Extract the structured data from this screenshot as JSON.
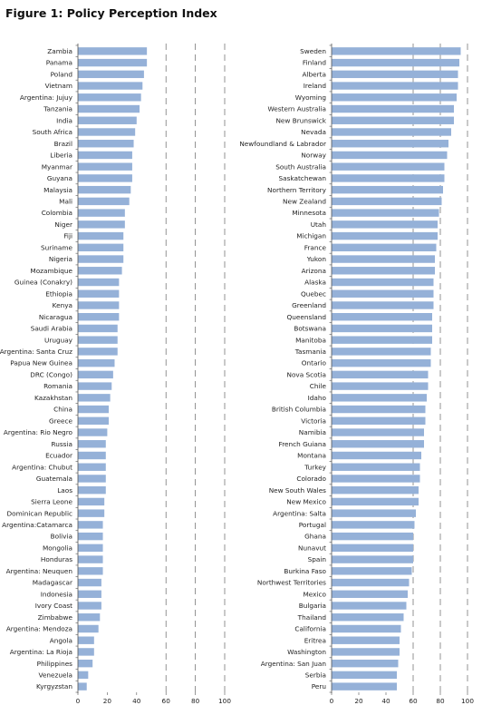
{
  "figure_title": "Figure 1: Policy Perception Index",
  "colors": {
    "bar": "#95b1d8",
    "axis": "#555555",
    "gridline": "#666666",
    "text": "#222222"
  },
  "chart_data": [
    {
      "type": "bar",
      "orientation": "horizontal",
      "xlim": [
        0,
        100
      ],
      "ticks": [
        "0",
        "20",
        "40",
        "60",
        "80",
        "100"
      ],
      "grid": "dashed vertical lines at 60, 80, 100",
      "categories": [
        "Zambia",
        "Panama",
        "Poland",
        "Vietnam",
        "Argentina: Jujuy",
        "Tanzania",
        "India",
        "South Africa",
        "Brazil",
        "Liberia",
        "Myanmar",
        "Guyana",
        "Malaysia",
        "Mali",
        "Colombia",
        "Niger",
        "Fiji",
        "Suriname",
        "Nigeria",
        "Mozambique",
        "Guinea (Conakry)",
        "Ethiopia",
        "Kenya",
        "Nicaragua",
        "Saudi Arabia",
        "Uruguay",
        "Argentina: Santa Cruz",
        "Papua New Guinea",
        "DRC (Congo)",
        "Romania",
        "Kazakhstan",
        "China",
        "Greece",
        "Argentina: Rio Negro",
        "Russia",
        "Ecuador",
        "Argentina: Chubut",
        "Guatemala",
        "Laos",
        "Sierra Leone",
        "Dominican Republic",
        "Argentina:Catamarca",
        "Bolivia",
        "Mongolia",
        "Honduras",
        "Argentina: Neuquen",
        "Madagascar",
        "Indonesia",
        "Ivory Coast",
        "Zimbabwe",
        "Argentina: Mendoza",
        "Angola",
        "Argentina: La Rioja",
        "Philippines",
        "Venezuela",
        "Kyrgyzstan"
      ],
      "values": [
        47,
        47,
        45,
        44,
        43,
        42,
        40,
        39,
        38,
        37,
        37,
        37,
        36,
        35,
        32,
        32,
        31,
        31,
        31,
        30,
        28,
        28,
        28,
        28,
        27,
        27,
        27,
        25,
        24,
        23,
        22,
        21,
        21,
        20,
        19,
        19,
        19,
        19,
        19,
        18,
        18,
        17,
        17,
        17,
        17,
        17,
        16,
        16,
        16,
        15,
        14,
        11,
        11,
        10,
        7,
        6
      ]
    },
    {
      "type": "bar",
      "orientation": "horizontal",
      "xlim": [
        0,
        100
      ],
      "ticks": [
        "0",
        "20",
        "40",
        "60",
        "80",
        "100"
      ],
      "grid": "dashed vertical lines at 60, 80, 100",
      "categories": [
        "Sweden",
        "Finland",
        "Alberta",
        "Ireland",
        "Wyoming",
        "Western Australia",
        "New Brunswick",
        "Nevada",
        "Newfoundland & Labrador",
        "Norway",
        "South Australia",
        "Saskatchewan",
        "Northern Territory",
        "New Zealand",
        "Minnesota",
        "Utah",
        "Michigan",
        "France",
        "Yukon",
        "Arizona",
        "Alaska",
        "Quebec",
        "Greenland",
        "Queensland",
        "Botswana",
        "Manitoba",
        "Tasmania",
        "Ontario",
        "Nova Scotia",
        "Chile",
        "Idaho",
        "British Columbia",
        "Victoria",
        "Namibia",
        "French Guiana",
        "Montana",
        "Turkey",
        "Colorado",
        "New South Wales",
        "New Mexico",
        "Argentina: Salta",
        "Portugal",
        "Ghana",
        "Nunavut",
        "Spain",
        "Burkina Faso",
        "Northwest Territories",
        "Mexico",
        "Bulgaria",
        "Thailand",
        "California",
        "Eritrea",
        "Washington",
        "Argentina: San Juan",
        "Serbia",
        "Peru"
      ],
      "values": [
        95,
        94,
        93,
        93,
        92,
        90,
        90,
        88,
        86,
        85,
        83,
        83,
        82,
        81,
        79,
        78,
        78,
        77,
        76,
        76,
        75,
        75,
        75,
        74,
        74,
        74,
        73,
        73,
        71,
        71,
        70,
        69,
        69,
        68,
        68,
        66,
        65,
        65,
        64,
        64,
        62,
        61,
        60,
        60,
        60,
        59,
        57,
        56,
        55,
        53,
        51,
        50,
        50,
        49,
        48,
        48
      ]
    }
  ]
}
